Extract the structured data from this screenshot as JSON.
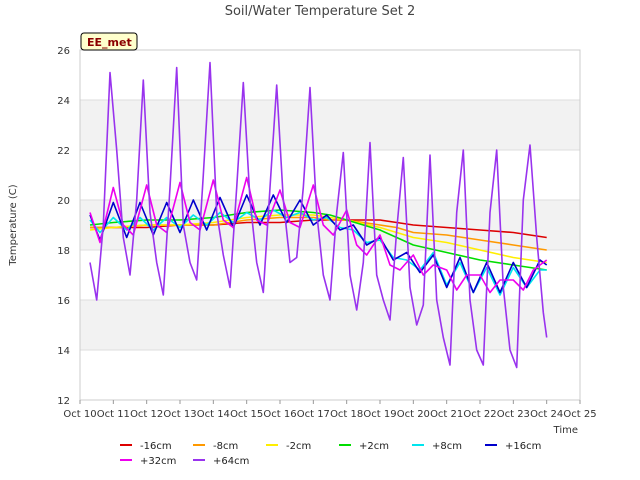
{
  "chart_data": {
    "type": "line",
    "title": "Soil/Water Temperature Set 2",
    "xlabel": "Time",
    "ylabel": "Temperature (C)",
    "badge": "EE_met",
    "ylim": [
      12,
      26
    ],
    "xlim": [
      10,
      25
    ],
    "yticks": [
      "12",
      "14",
      "16",
      "18",
      "20",
      "22",
      "24",
      "26"
    ],
    "xticks": [
      "Oct 10",
      "Oct 11",
      "Oct 12",
      "Oct 13",
      "Oct 14",
      "Oct 15",
      "Oct 16",
      "Oct 17",
      "Oct 18",
      "Oct 19",
      "Oct 20",
      "Oct 21",
      "Oct 22",
      "Oct 23",
      "Oct 24",
      "Oct 25"
    ],
    "shaded_bands": [
      [
        14,
        16
      ],
      [
        18,
        20
      ],
      [
        22,
        24
      ]
    ],
    "grid": true,
    "legend_position": "bottom",
    "x_units": "day of October",
    "series": [
      {
        "name": "-16cm",
        "color": "#dd0000",
        "x": [
          10.3,
          11,
          12,
          13,
          14,
          15,
          16,
          17,
          17.5,
          18,
          19,
          19.5,
          20,
          21,
          22,
          23,
          23.5,
          24
        ],
        "y": [
          18.9,
          18.9,
          18.9,
          19.0,
          19.0,
          19.1,
          19.1,
          19.2,
          19.2,
          19.2,
          19.2,
          19.1,
          19.0,
          18.9,
          18.8,
          18.7,
          18.6,
          18.5
        ]
      },
      {
        "name": "-8cm",
        "color": "#ff9900",
        "x": [
          10.3,
          11,
          12,
          13,
          14,
          15,
          16,
          17,
          17.5,
          18,
          19,
          19.5,
          20,
          21,
          22,
          23,
          23.5,
          24
        ],
        "y": [
          18.9,
          18.9,
          19.0,
          19.0,
          19.0,
          19.2,
          19.3,
          19.3,
          19.2,
          19.2,
          19.0,
          18.9,
          18.7,
          18.6,
          18.4,
          18.2,
          18.1,
          18.0
        ]
      },
      {
        "name": "-2cm",
        "color": "#ffee00",
        "x": [
          10.3,
          11,
          12,
          13,
          14,
          15,
          16,
          17,
          17.5,
          18,
          19,
          19.5,
          20,
          21,
          22,
          23,
          23.5,
          24
        ],
        "y": [
          18.8,
          18.9,
          19.0,
          19.0,
          19.1,
          19.3,
          19.4,
          19.4,
          19.3,
          19.2,
          18.9,
          18.7,
          18.5,
          18.3,
          18.0,
          17.7,
          17.6,
          17.5
        ]
      },
      {
        "name": "+2cm",
        "color": "#00dd00",
        "x": [
          10.3,
          11,
          12,
          13,
          14,
          15,
          16,
          17,
          17.5,
          18,
          19,
          19.5,
          20,
          21,
          22,
          23,
          23.5,
          24
        ],
        "y": [
          19.0,
          19.1,
          19.2,
          19.2,
          19.3,
          19.5,
          19.6,
          19.5,
          19.4,
          19.2,
          18.8,
          18.5,
          18.2,
          17.9,
          17.6,
          17.4,
          17.3,
          17.2
        ]
      },
      {
        "name": "+8cm",
        "color": "#00e5ee",
        "x": [
          10.3,
          10.6,
          11,
          11.4,
          11.8,
          12.2,
          12.6,
          13,
          13.4,
          13.8,
          14.2,
          14.6,
          15,
          15.4,
          15.8,
          16.2,
          16.6,
          17,
          17.4,
          17.8,
          18.2,
          18.6,
          19,
          19.4,
          19.8,
          20.2,
          20.6,
          21,
          21.4,
          21.8,
          22.2,
          22.6,
          23,
          23.4,
          23.8,
          24
        ],
        "y": [
          19.2,
          18.7,
          19.3,
          18.8,
          19.3,
          18.8,
          19.3,
          18.9,
          19.4,
          19.0,
          19.5,
          19.1,
          19.5,
          19.2,
          19.6,
          19.3,
          19.5,
          19.2,
          19.3,
          18.9,
          18.8,
          18.3,
          18.4,
          17.7,
          17.6,
          17.2,
          17.9,
          16.6,
          17.5,
          16.3,
          17.3,
          16.2,
          17.3,
          16.5,
          17.2,
          17.2
        ]
      },
      {
        "name": "+16cm",
        "color": "#0000cc",
        "x": [
          10.3,
          10.6,
          11,
          11.4,
          11.8,
          12.2,
          12.6,
          13,
          13.4,
          13.8,
          14.2,
          14.6,
          15,
          15.4,
          15.8,
          16.2,
          16.6,
          17,
          17.4,
          17.8,
          18.2,
          18.6,
          19,
          19.4,
          19.8,
          20.2,
          20.6,
          21,
          21.4,
          21.8,
          22.2,
          22.6,
          23,
          23.4,
          23.8,
          24
        ],
        "y": [
          19.4,
          18.4,
          19.9,
          18.5,
          19.9,
          18.6,
          19.9,
          18.7,
          20.0,
          18.8,
          20.1,
          18.9,
          20.2,
          19.0,
          20.2,
          19.1,
          20.0,
          19.0,
          19.4,
          18.8,
          19.0,
          18.2,
          18.5,
          17.6,
          17.9,
          17.1,
          17.8,
          16.5,
          17.7,
          16.3,
          17.5,
          16.3,
          17.5,
          16.5,
          17.6,
          17.4
        ]
      },
      {
        "name": "+32cm",
        "color": "#ee00ee",
        "x": [
          10.3,
          10.6,
          11,
          11.3,
          11.6,
          12,
          12.3,
          12.6,
          13,
          13.3,
          13.6,
          14,
          14.3,
          14.6,
          15,
          15.3,
          15.6,
          16,
          16.3,
          16.6,
          17,
          17.3,
          17.6,
          18,
          18.3,
          18.6,
          19,
          19.3,
          19.6,
          20,
          20.3,
          20.6,
          21,
          21.3,
          21.6,
          22,
          22.3,
          22.6,
          23,
          23.3,
          23.6,
          24
        ],
        "y": [
          19.5,
          18.3,
          20.5,
          19.0,
          18.6,
          20.6,
          19.0,
          18.7,
          20.7,
          19.1,
          18.8,
          20.8,
          19.2,
          18.9,
          20.9,
          19.2,
          19.0,
          20.4,
          19.1,
          18.9,
          20.6,
          19.0,
          18.6,
          19.6,
          18.2,
          17.8,
          18.6,
          17.4,
          17.2,
          17.8,
          17.0,
          17.4,
          17.2,
          16.4,
          17.0,
          17.0,
          16.3,
          16.8,
          16.8,
          16.4,
          17.2,
          17.6
        ]
      },
      {
        "name": "+64cm",
        "color": "#9933ee",
        "x": [
          10.3,
          10.5,
          10.7,
          10.9,
          11.1,
          11.3,
          11.5,
          11.7,
          11.9,
          12.1,
          12.3,
          12.5,
          12.7,
          12.9,
          13.1,
          13.3,
          13.5,
          13.7,
          13.9,
          14.1,
          14.3,
          14.5,
          14.7,
          14.9,
          15.1,
          15.3,
          15.5,
          15.7,
          15.9,
          16.1,
          16.3,
          16.5,
          16.7,
          16.9,
          17.1,
          17.3,
          17.5,
          17.7,
          17.9,
          18.1,
          18.3,
          18.5,
          18.7,
          18.9,
          19.1,
          19.3,
          19.5,
          19.7,
          19.9,
          20.1,
          20.3,
          20.5,
          20.7,
          20.9,
          21.1,
          21.3,
          21.5,
          21.7,
          21.9,
          22.1,
          22.3,
          22.5,
          22.7,
          22.9,
          23.1,
          23.3,
          23.5,
          23.7,
          23.9,
          24.0
        ],
        "y": [
          17.5,
          16.0,
          19.0,
          25.1,
          22.0,
          18.5,
          17.0,
          20.0,
          24.8,
          19.5,
          17.5,
          16.2,
          20.5,
          25.3,
          19.0,
          17.5,
          16.8,
          21.0,
          25.5,
          19.5,
          17.8,
          16.5,
          20.5,
          24.7,
          20.0,
          17.5,
          16.3,
          20.5,
          24.6,
          20.0,
          17.5,
          17.7,
          20.5,
          24.5,
          19.5,
          17.0,
          16.0,
          19.5,
          21.9,
          17.0,
          15.6,
          17.5,
          22.3,
          17.0,
          16.0,
          15.2,
          18.8,
          21.7,
          16.5,
          15.0,
          15.8,
          21.8,
          16.0,
          14.5,
          13.4,
          19.5,
          22.0,
          16.0,
          14.0,
          13.4,
          19.5,
          22.0,
          16.5,
          14.0,
          13.3,
          20.0,
          22.2,
          18.5,
          15.5,
          14.5
        ]
      }
    ]
  }
}
